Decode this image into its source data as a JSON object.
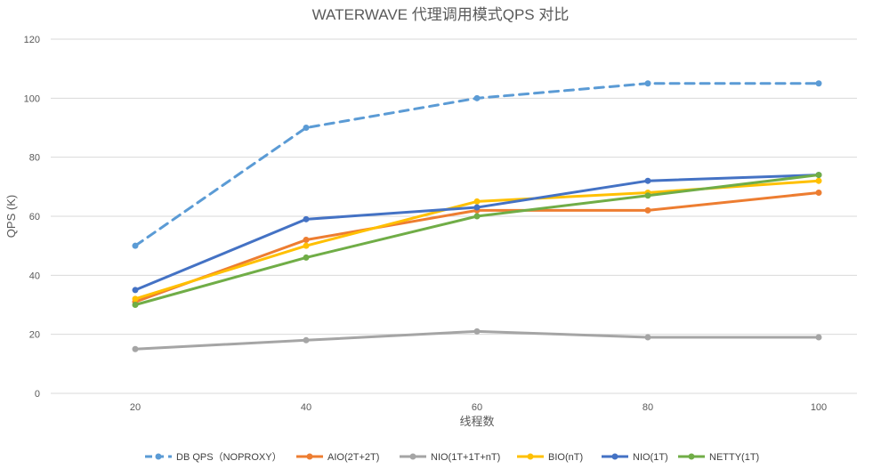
{
  "chart_data": {
    "type": "line",
    "title": "WATERWAVE 代理调用模式QPS 对比",
    "xlabel": "线程数",
    "ylabel": "QPS (K)",
    "x": [
      20,
      40,
      60,
      80,
      100
    ],
    "ylim": [
      0,
      120
    ],
    "yticks": [
      0,
      20,
      40,
      60,
      80,
      100,
      120
    ],
    "grid": true,
    "legend_position": "bottom",
    "series": [
      {
        "name": "DB QPS（NOPROXY）",
        "values": [
          50,
          90,
          100,
          105,
          105
        ],
        "color": "#5B9BD5",
        "dashed": true
      },
      {
        "name": "AIO(2T+2T)",
        "values": [
          31,
          52,
          62,
          62,
          68
        ],
        "color": "#ED7D31",
        "dashed": false
      },
      {
        "name": "NIO(1T+1T+nT)",
        "values": [
          15,
          18,
          21,
          19,
          19
        ],
        "color": "#A5A5A5",
        "dashed": false
      },
      {
        "name": "BIO(nT)",
        "values": [
          32,
          50,
          65,
          68,
          72
        ],
        "color": "#FFC000",
        "dashed": false
      },
      {
        "name": "NIO(1T)",
        "values": [
          35,
          59,
          63,
          72,
          74
        ],
        "color": "#4472C4",
        "dashed": false
      },
      {
        "name": "NETTY(1T)",
        "values": [
          30,
          46,
          60,
          67,
          74
        ],
        "color": "#70AD47",
        "dashed": false
      }
    ]
  }
}
